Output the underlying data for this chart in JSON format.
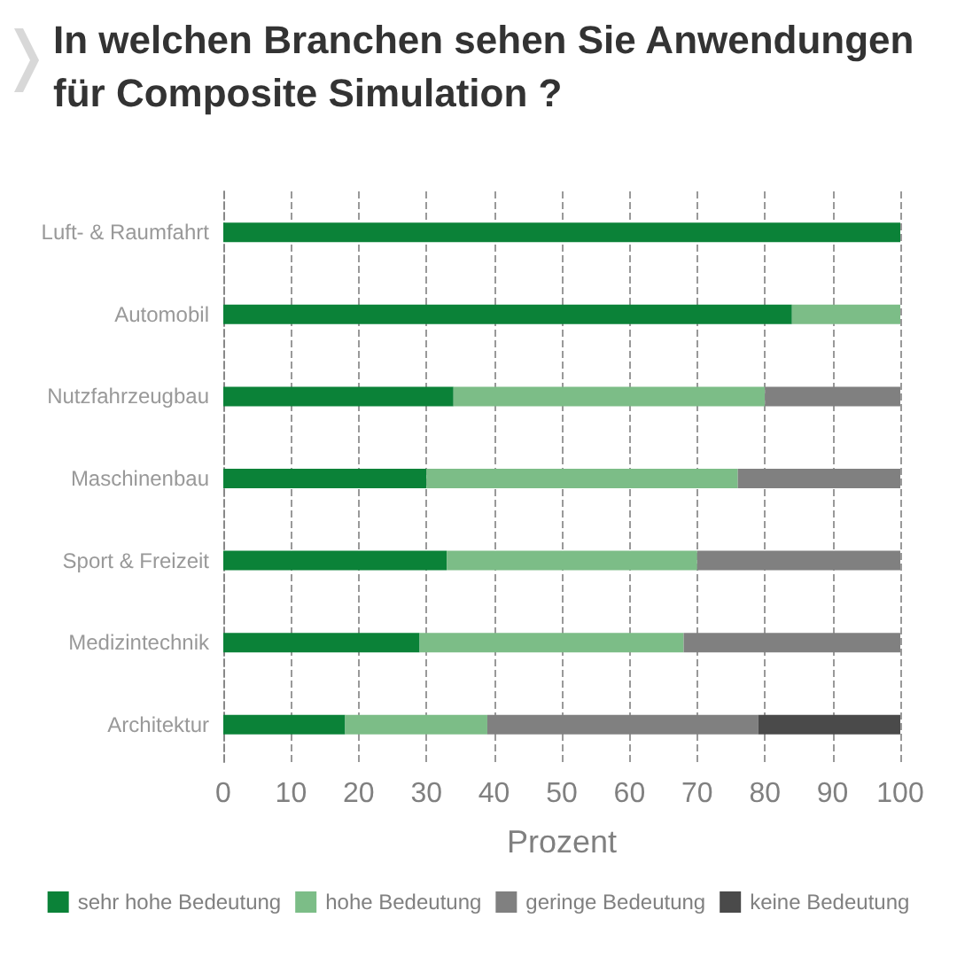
{
  "chart_data": {
    "type": "bar",
    "orientation": "horizontal",
    "stacked": true,
    "title": "In welchen Branchen sehen Sie Anwendungen für Composite Simulation ?",
    "categories": [
      "Luft- & Raumfahrt",
      "Automobil",
      "Nutzfahrzeugbau",
      "Maschinenbau",
      "Sport & Freizeit",
      "Medizintechnik",
      "Architektur"
    ],
    "series": [
      {
        "name": "sehr hohe Bedeutung",
        "color": "#0b8238",
        "values": [
          100,
          84,
          34,
          30,
          33,
          29,
          18
        ]
      },
      {
        "name": "hohe Bedeutung",
        "color": "#7cbd87",
        "values": [
          0,
          16,
          46,
          46,
          37,
          39,
          21
        ]
      },
      {
        "name": "geringe Bedeutung",
        "color": "#808080",
        "values": [
          0,
          0,
          20,
          24,
          30,
          32,
          40
        ]
      },
      {
        "name": "keine Bedeutung",
        "color": "#4a4a4a",
        "values": [
          0,
          0,
          0,
          0,
          0,
          0,
          21
        ]
      }
    ],
    "xlabel": "Prozent",
    "xlim": [
      0,
      100
    ],
    "xticks": [
      0,
      10,
      20,
      30,
      40,
      50,
      60,
      70,
      80,
      90,
      100
    ],
    "grid": "x",
    "legend": "bottom"
  }
}
